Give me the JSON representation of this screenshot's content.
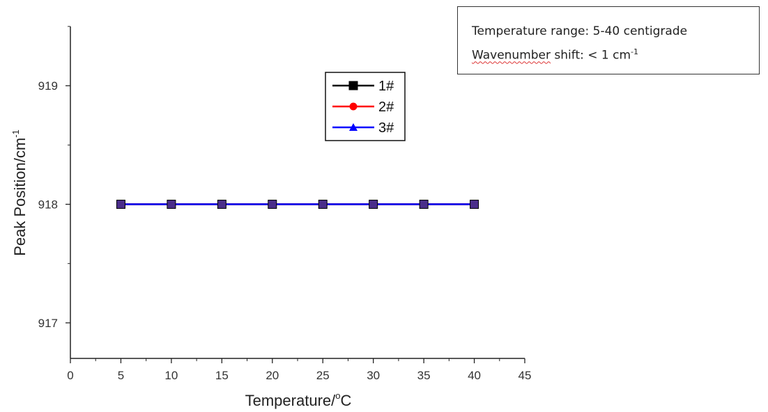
{
  "chart_data": {
    "type": "line",
    "title": "",
    "xlabel": "Temperature/°C",
    "xlabel_main": "Temperature/",
    "xlabel_sup": "o",
    "xlabel_unit": "C",
    "ylabel": "Peak Position/cm⁻¹",
    "ylabel_main": "Peak Position/cm",
    "ylabel_sup": "-1",
    "xlim": [
      0,
      45
    ],
    "ylim": [
      916.7,
      919.5
    ],
    "x_ticks": [
      0,
      5,
      10,
      15,
      20,
      25,
      30,
      35,
      40,
      45
    ],
    "y_ticks": [
      917,
      918,
      919
    ],
    "grid": false,
    "legend_placement": "top-center",
    "x": [
      5,
      10,
      15,
      20,
      25,
      30,
      35,
      40
    ],
    "series": [
      {
        "name": "1#",
        "color": "#000000",
        "marker": "square",
        "values": [
          918,
          918,
          918,
          918,
          918,
          918,
          918,
          918
        ]
      },
      {
        "name": "2#",
        "color": "#ff0000",
        "marker": "circle",
        "values": [
          918,
          918,
          918,
          918,
          918,
          918,
          918,
          918
        ]
      },
      {
        "name": "3#",
        "color": "#0000ff",
        "marker": "triangle",
        "values": [
          918,
          918,
          918,
          918,
          918,
          918,
          918,
          918
        ]
      }
    ],
    "overlay_marker_color": "#4a2d8a"
  },
  "annotation": {
    "line1": "Temperature range: 5-40 centigrade",
    "line2_word": "Wavenumber",
    "line2_rest": " shift: < 1 cm",
    "line2_sup": "-1"
  }
}
